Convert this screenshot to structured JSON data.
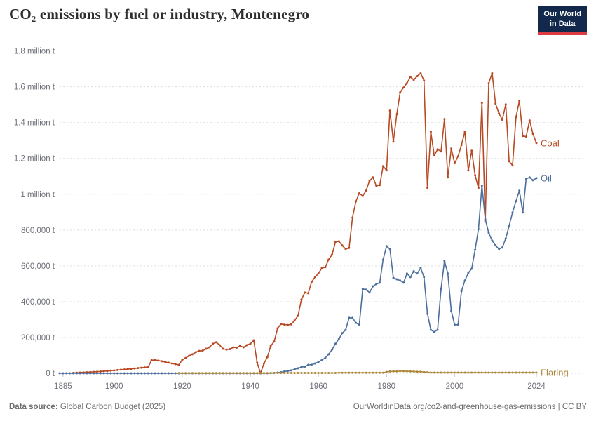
{
  "header": {
    "title": "CO₂ emissions by fuel or industry, Montenegro",
    "logo": {
      "line1": "Our World",
      "line2": "in Data"
    }
  },
  "theme": {
    "logo_bg": "#12294B",
    "logo_accent": "#DC3B41",
    "grid_color": "#dcdde0",
    "axis_text_color": "#6e7079",
    "title_color": "#2e2e2e"
  },
  "footer": {
    "source_label": "Data source:",
    "source_value": " Global Carbon Budget (2025)",
    "link": "OurWorldinData.org/co2-and-greenhouse-gas-emissions | CC BY"
  },
  "chart_data": {
    "type": "line",
    "title": "CO₂ emissions by fuel or industry, Montenegro",
    "unit": "tonnes",
    "values_unit": "thousand tonnes",
    "grid": true,
    "legend_position": "line-end-labels",
    "x_range": [
      1884,
      2024
    ],
    "y_range": [
      0,
      1800
    ],
    "xticks": [
      1885,
      1900,
      1920,
      1940,
      1960,
      1980,
      2000,
      2024
    ],
    "yticks": [
      {
        "value": 0,
        "label": "0 t"
      },
      {
        "value": 200,
        "label": "200,000 t"
      },
      {
        "value": 400,
        "label": "400,000 t"
      },
      {
        "value": 600,
        "label": "600,000 t"
      },
      {
        "value": 800,
        "label": "800,000 t"
      },
      {
        "value": 1000,
        "label": "1 million t"
      },
      {
        "value": 1200,
        "label": "1.2 million t"
      },
      {
        "value": 1400,
        "label": "1.4 million t"
      },
      {
        "value": 1600,
        "label": "1.6 million t"
      },
      {
        "value": 1800,
        "label": "1.8 million t"
      }
    ],
    "series": [
      {
        "name": "Coal",
        "color": "#B84923",
        "start_year": 1888,
        "values": [
          2,
          3,
          4,
          5,
          6,
          7,
          8,
          9,
          10,
          12,
          13,
          15,
          16,
          18,
          20,
          21,
          23,
          25,
          27,
          29,
          31,
          33,
          35,
          73,
          75,
          71,
          67,
          63,
          59,
          55,
          51,
          47,
          75,
          86,
          98,
          106,
          118,
          125,
          126,
          137,
          145,
          165,
          173,
          157,
          137,
          133,
          135,
          145,
          143,
          153,
          145,
          157,
          165,
          184,
          60,
          0,
          55,
          90,
          153,
          177,
          251,
          275,
          272,
          270,
          273,
          295,
          321,
          412,
          451,
          447,
          510,
          537,
          557,
          588,
          592,
          635,
          663,
          733,
          737,
          714,
          694,
          700,
          870,
          960,
          1005,
          990,
          1020,
          1075,
          1094,
          1047,
          1051,
          1157,
          1133,
          1467,
          1294,
          1447,
          1569,
          1596,
          1620,
          1655,
          1639,
          1659,
          1675,
          1635,
          1035,
          1349,
          1216,
          1251,
          1239,
          1420,
          1094,
          1255,
          1173,
          1212,
          1275,
          1349,
          1133,
          1243,
          1106,
          1035,
          1510,
          850,
          1620,
          1675,
          1506,
          1451,
          1416,
          1502,
          1184,
          1161,
          1431,
          1522,
          1325,
          1322,
          1412,
          1337,
          1286
        ]
      },
      {
        "name": "Oil",
        "color": "#4C6E9D",
        "start_year": 1884,
        "values": [
          0,
          0,
          0,
          0,
          0,
          0,
          0,
          0,
          0,
          0,
          0,
          0,
          0,
          0,
          0,
          0,
          0,
          0,
          0,
          0,
          0,
          0,
          0,
          0,
          0,
          0,
          0,
          0,
          0,
          0,
          0,
          0,
          0,
          0,
          0,
          0,
          0,
          0,
          0,
          0,
          0,
          0,
          0,
          0,
          0,
          0,
          0,
          0,
          0,
          0,
          0,
          0,
          0,
          0,
          0,
          0,
          0,
          0,
          0,
          0,
          0,
          0,
          1,
          2,
          4,
          6,
          10,
          13,
          16,
          22,
          28,
          35,
          37,
          47,
          48,
          55,
          63,
          75,
          86,
          106,
          133,
          165,
          192,
          224,
          243,
          310,
          310,
          282,
          271,
          471,
          467,
          451,
          486,
          498,
          506,
          635,
          710,
          694,
          533,
          525,
          518,
          506,
          557,
          537,
          570,
          557,
          588,
          537,
          333,
          243,
          231,
          243,
          471,
          627,
          557,
          349,
          271,
          271,
          459,
          518,
          561,
          584,
          690,
          805,
          1047,
          860,
          784,
          741,
          714,
          694,
          702,
          753,
          824,
          898,
          961,
          1020,
          898,
          1086,
          1094,
          1078,
          1090
        ]
      },
      {
        "name": "Flaring",
        "color": "#AD883B",
        "start_year": 1919,
        "values": [
          1,
          1,
          1,
          1,
          1,
          1,
          1,
          1,
          1,
          1,
          1,
          1,
          1,
          1,
          1,
          1,
          1,
          1,
          1,
          1,
          1,
          1,
          1,
          1,
          1,
          1,
          1,
          2,
          2,
          2,
          2,
          2,
          2,
          2,
          2,
          2,
          2,
          2,
          2,
          2,
          2,
          2,
          2,
          2,
          2,
          2,
          2,
          3,
          3,
          3,
          3,
          3,
          3,
          3,
          3,
          3,
          3,
          3,
          3,
          3,
          3,
          8,
          10,
          11,
          11,
          12,
          12,
          11,
          11,
          10,
          9,
          9,
          7,
          6,
          4,
          4,
          4,
          4,
          4,
          4,
          4,
          4,
          4,
          4,
          4,
          4,
          4,
          4,
          4,
          4,
          4,
          4,
          4,
          4,
          4,
          4,
          4,
          4,
          4,
          4,
          4,
          4,
          4,
          4,
          4,
          4
        ]
      }
    ]
  }
}
